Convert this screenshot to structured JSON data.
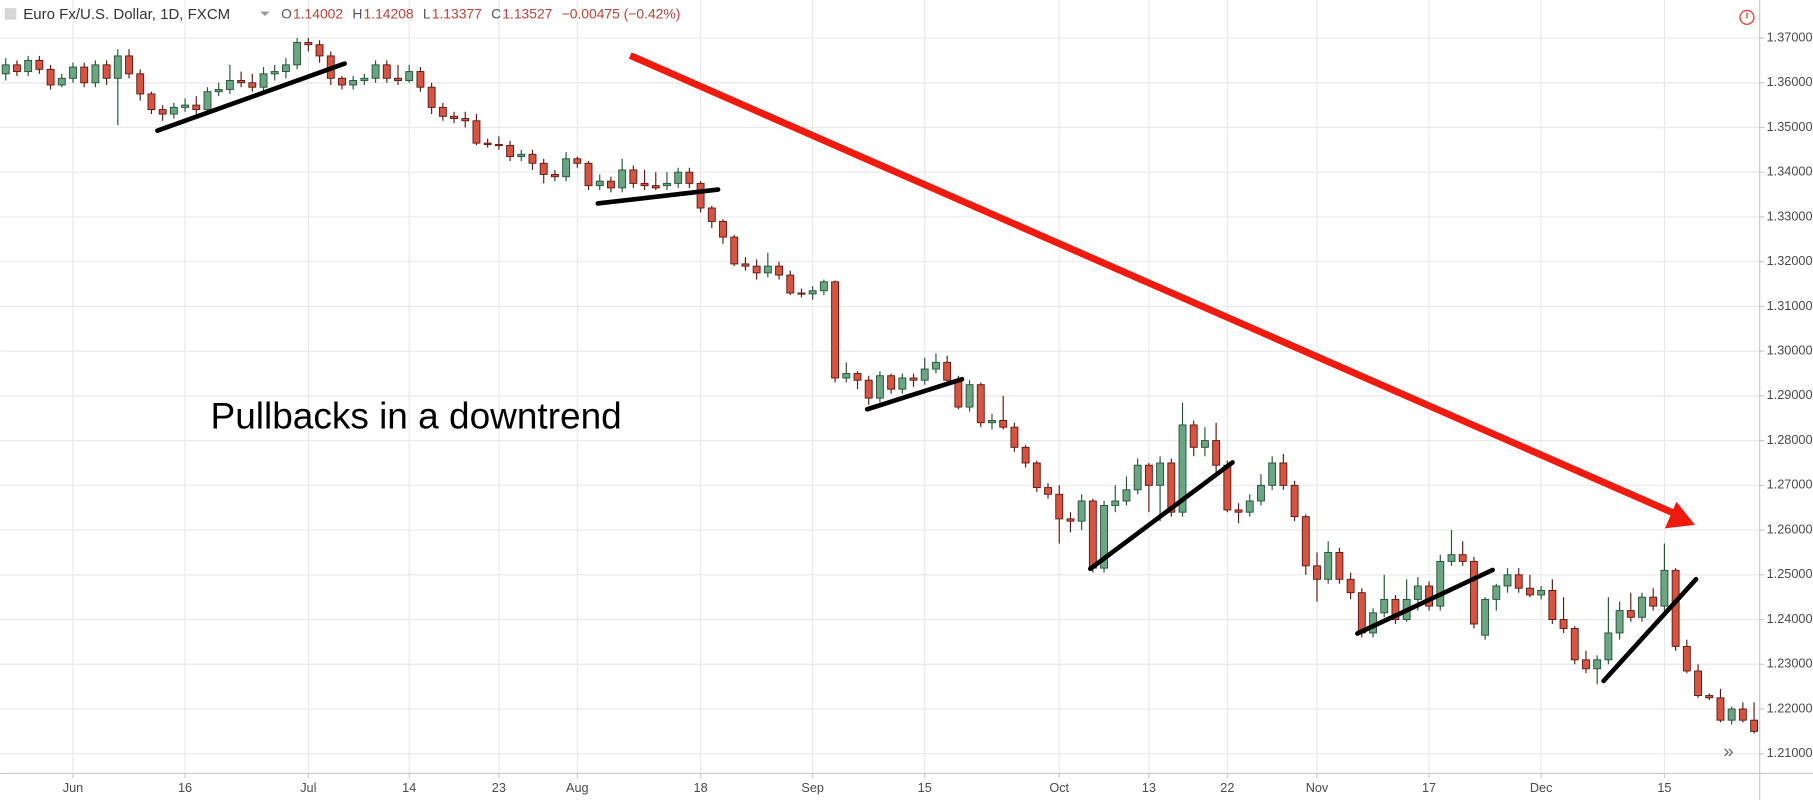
{
  "header": {
    "symbol": "Euro Fx/U.S. Dollar, 1D, FXCM",
    "ohlc": [
      {
        "label": "O",
        "value": "1.14002"
      },
      {
        "label": "H",
        "value": "1.14208"
      },
      {
        "label": "L",
        "value": "1.13377"
      },
      {
        "label": "C",
        "value": "1.13527"
      }
    ],
    "change": "−0.00475 (−0.42%)"
  },
  "chart_data": {
    "type": "candlestick",
    "annotation": "Pullbacks in a downtrend",
    "up_color": "#6ba583",
    "down_color": "#d75442",
    "grid": true,
    "xlim": [
      -0.5,
      156.5
    ],
    "xticks": [
      {
        "value": 6,
        "label": "Jun"
      },
      16,
      {
        "value": 27,
        "label": "Jul"
      },
      14,
      23,
      {
        "value": 51,
        "label": "Aug"
      },
      18,
      {
        "value": 72,
        "label": "Sep"
      },
      15,
      {
        "value": 94,
        "label": "Oct"
      },
      13,
      22,
      {
        "value": 117,
        "label": "Nov"
      },
      17,
      {
        "value": 137,
        "label": "Dec"
      },
      15
    ],
    "xtick_positions": [
      6,
      16,
      27,
      36,
      44,
      51,
      62,
      72,
      82,
      94,
      102,
      109,
      117,
      127,
      137,
      148
    ],
    "ylim": [
      1.2056,
      1.3785
    ],
    "yticks": [
      {
        "value": 1.21,
        "label": "1.21000"
      },
      {
        "value": 1.22,
        "label": "1.22000"
      },
      {
        "value": 1.23,
        "label": "1.23000"
      },
      {
        "value": 1.24,
        "label": "1.24000"
      },
      {
        "value": 1.25,
        "label": "1.25000"
      },
      {
        "value": 1.26,
        "label": "1.26000"
      },
      {
        "value": 1.27,
        "label": "1.27000"
      },
      {
        "value": 1.28,
        "label": "1.28000"
      },
      {
        "value": 1.29,
        "label": "1.29000"
      },
      {
        "value": 1.3,
        "label": "1.30000"
      },
      {
        "value": 1.31,
        "label": "1.31000"
      },
      {
        "value": 1.32,
        "label": "1.32000"
      },
      {
        "value": 1.33,
        "label": "1.33000"
      },
      {
        "value": 1.34,
        "label": "1.34000"
      },
      {
        "value": 1.35,
        "label": "1.35000"
      },
      {
        "value": 1.36,
        "label": "1.36000"
      },
      {
        "value": 1.37,
        "label": "1.37000"
      }
    ],
    "candles": [
      [
        1.362,
        1.3655,
        1.3605,
        1.364
      ],
      [
        1.364,
        1.365,
        1.3615,
        1.3625
      ],
      [
        1.3625,
        1.366,
        1.3615,
        1.365
      ],
      [
        1.365,
        1.366,
        1.362,
        1.363
      ],
      [
        1.363,
        1.364,
        1.3585,
        1.3595
      ],
      [
        1.3595,
        1.362,
        1.359,
        1.361
      ],
      [
        1.361,
        1.3645,
        1.36,
        1.3635
      ],
      [
        1.3635,
        1.3645,
        1.359,
        1.36
      ],
      [
        1.36,
        1.365,
        1.359,
        1.364
      ],
      [
        1.364,
        1.365,
        1.3595,
        1.361
      ],
      [
        1.361,
        1.3675,
        1.3505,
        1.366
      ],
      [
        1.366,
        1.3675,
        1.361,
        1.362
      ],
      [
        1.362,
        1.363,
        1.356,
        1.3575
      ],
      [
        1.3575,
        1.358,
        1.353,
        1.354
      ],
      [
        1.354,
        1.355,
        1.3515,
        1.353
      ],
      [
        1.353,
        1.3555,
        1.352,
        1.3545
      ],
      [
        1.3545,
        1.3565,
        1.3535,
        1.355
      ],
      [
        1.355,
        1.357,
        1.353,
        1.354
      ],
      [
        1.354,
        1.359,
        1.353,
        1.358
      ],
      [
        1.358,
        1.36,
        1.357,
        1.3585
      ],
      [
        1.3585,
        1.364,
        1.3575,
        1.3605
      ],
      [
        1.3605,
        1.3625,
        1.359,
        1.36
      ],
      [
        1.36,
        1.362,
        1.358,
        1.359
      ],
      [
        1.359,
        1.3635,
        1.358,
        1.362
      ],
      [
        1.362,
        1.364,
        1.3605,
        1.3625
      ],
      [
        1.3625,
        1.3655,
        1.361,
        1.364
      ],
      [
        1.364,
        1.37,
        1.363,
        1.369
      ],
      [
        1.369,
        1.37,
        1.367,
        1.3685
      ],
      [
        1.3685,
        1.3695,
        1.3645,
        1.366
      ],
      [
        1.366,
        1.367,
        1.3595,
        1.361
      ],
      [
        1.361,
        1.3615,
        1.3585,
        1.3595
      ],
      [
        1.3595,
        1.3615,
        1.3585,
        1.3605
      ],
      [
        1.3605,
        1.362,
        1.3595,
        1.361
      ],
      [
        1.361,
        1.365,
        1.36,
        1.364
      ],
      [
        1.364,
        1.365,
        1.36,
        1.361
      ],
      [
        1.361,
        1.364,
        1.3595,
        1.3605
      ],
      [
        1.3605,
        1.364,
        1.36,
        1.3625
      ],
      [
        1.3625,
        1.3635,
        1.358,
        1.359
      ],
      [
        1.359,
        1.36,
        1.353,
        1.3545
      ],
      [
        1.3545,
        1.3555,
        1.3515,
        1.3525
      ],
      [
        1.3525,
        1.3535,
        1.351,
        1.352
      ],
      [
        1.352,
        1.3535,
        1.35,
        1.3515
      ],
      [
        1.3515,
        1.353,
        1.346,
        1.3465
      ],
      [
        1.3465,
        1.3475,
        1.3455,
        1.3462
      ],
      [
        1.3462,
        1.348,
        1.345,
        1.346
      ],
      [
        1.346,
        1.347,
        1.3425,
        1.3435
      ],
      [
        1.3435,
        1.345,
        1.3425,
        1.344
      ],
      [
        1.344,
        1.345,
        1.3405,
        1.342
      ],
      [
        1.342,
        1.343,
        1.3375,
        1.3395
      ],
      [
        1.3395,
        1.3405,
        1.338,
        1.339
      ],
      [
        1.339,
        1.3445,
        1.338,
        1.343
      ],
      [
        1.343,
        1.3435,
        1.341,
        1.342
      ],
      [
        1.342,
        1.3425,
        1.336,
        1.337
      ],
      [
        1.337,
        1.3395,
        1.336,
        1.338
      ],
      [
        1.338,
        1.339,
        1.3355,
        1.3365
      ],
      [
        1.3365,
        1.343,
        1.3355,
        1.3405
      ],
      [
        1.3405,
        1.3415,
        1.3365,
        1.3375
      ],
      [
        1.3375,
        1.3405,
        1.336,
        1.337
      ],
      [
        1.337,
        1.34,
        1.336,
        1.3365
      ],
      [
        1.337,
        1.34,
        1.336,
        1.3375
      ],
      [
        1.3375,
        1.341,
        1.3365,
        1.34
      ],
      [
        1.34,
        1.341,
        1.3365,
        1.3375
      ],
      [
        1.3375,
        1.338,
        1.331,
        1.332
      ],
      [
        1.332,
        1.3325,
        1.3275,
        1.329
      ],
      [
        1.329,
        1.3295,
        1.324,
        1.3255
      ],
      [
        1.3255,
        1.326,
        1.319,
        1.3195
      ],
      [
        1.3195,
        1.321,
        1.318,
        1.319
      ],
      [
        1.319,
        1.3205,
        1.316,
        1.3175
      ],
      [
        1.3175,
        1.322,
        1.3165,
        1.319
      ],
      [
        1.319,
        1.32,
        1.316,
        1.317
      ],
      [
        1.317,
        1.318,
        1.3125,
        1.313
      ],
      [
        1.313,
        1.314,
        1.312,
        1.3128
      ],
      [
        1.3128,
        1.3145,
        1.3115,
        1.3135
      ],
      [
        1.3135,
        1.316,
        1.3125,
        1.3155
      ],
      [
        1.3155,
        1.3158,
        1.293,
        1.294
      ],
      [
        1.294,
        1.2975,
        1.293,
        1.295
      ],
      [
        1.295,
        1.2955,
        1.2915,
        1.2935
      ],
      [
        1.2935,
        1.2945,
        1.288,
        1.2895
      ],
      [
        1.2895,
        1.2955,
        1.2885,
        1.2945
      ],
      [
        1.2945,
        1.295,
        1.2905,
        1.2915
      ],
      [
        1.2915,
        1.295,
        1.2905,
        1.294
      ],
      [
        1.294,
        1.295,
        1.292,
        1.2935
      ],
      [
        1.2935,
        1.2985,
        1.2925,
        1.296
      ],
      [
        1.296,
        1.2995,
        1.295,
        1.2975
      ],
      [
        1.2975,
        1.299,
        1.2925,
        1.2935
      ],
      [
        1.2935,
        1.2945,
        1.287,
        1.2875
      ],
      [
        1.2875,
        1.2935,
        1.2865,
        1.2925
      ],
      [
        1.2925,
        1.293,
        1.283,
        1.284
      ],
      [
        1.284,
        1.286,
        1.2825,
        1.2845
      ],
      [
        1.2845,
        1.29,
        1.2825,
        1.283
      ],
      [
        1.283,
        1.284,
        1.2775,
        1.2785
      ],
      [
        1.2785,
        1.279,
        1.274,
        1.275
      ],
      [
        1.275,
        1.2755,
        1.2685,
        1.2695
      ],
      [
        1.2695,
        1.2705,
        1.267,
        1.268
      ],
      [
        1.268,
        1.27,
        1.257,
        1.2625
      ],
      [
        1.2625,
        1.264,
        1.2595,
        1.262
      ],
      [
        1.262,
        1.268,
        1.26,
        1.2665
      ],
      [
        1.2665,
        1.267,
        1.2505,
        1.2515
      ],
      [
        1.2515,
        1.2665,
        1.2505,
        1.2655
      ],
      [
        1.2655,
        1.27,
        1.264,
        1.2665
      ],
      [
        1.2665,
        1.272,
        1.2655,
        1.269
      ],
      [
        1.269,
        1.276,
        1.268,
        1.2745
      ],
      [
        1.2745,
        1.275,
        1.264,
        1.27
      ],
      [
        1.27,
        1.2765,
        1.262,
        1.275
      ],
      [
        1.275,
        1.276,
        1.263,
        1.264
      ],
      [
        1.264,
        1.2885,
        1.263,
        1.2835
      ],
      [
        1.2835,
        1.2845,
        1.2765,
        1.2785
      ],
      [
        1.2785,
        1.283,
        1.2765,
        1.28
      ],
      [
        1.28,
        1.284,
        1.272,
        1.2745
      ],
      [
        1.2745,
        1.2755,
        1.264,
        1.2645
      ],
      [
        1.2645,
        1.266,
        1.2615,
        1.264
      ],
      [
        1.264,
        1.268,
        1.263,
        1.2665
      ],
      [
        1.2665,
        1.2725,
        1.2655,
        1.27
      ],
      [
        1.27,
        1.2765,
        1.269,
        1.275
      ],
      [
        1.275,
        1.277,
        1.269,
        1.27
      ],
      [
        1.27,
        1.271,
        1.262,
        1.263
      ],
      [
        1.263,
        1.2635,
        1.25,
        1.252
      ],
      [
        1.252,
        1.255,
        1.244,
        1.249
      ],
      [
        1.249,
        1.2575,
        1.248,
        1.255
      ],
      [
        1.255,
        1.256,
        1.248,
        1.249
      ],
      [
        1.249,
        1.2505,
        1.2445,
        1.246
      ],
      [
        1.246,
        1.247,
        1.236,
        1.237
      ],
      [
        1.237,
        1.2425,
        1.236,
        1.2415
      ],
      [
        1.2415,
        1.25,
        1.2405,
        1.2445
      ],
      [
        1.2445,
        1.2455,
        1.239,
        1.24
      ],
      [
        1.24,
        1.249,
        1.2395,
        1.2445
      ],
      [
        1.2445,
        1.2495,
        1.242,
        1.2475
      ],
      [
        1.2475,
        1.2485,
        1.242,
        1.243
      ],
      [
        1.243,
        1.2545,
        1.242,
        1.253
      ],
      [
        1.253,
        1.26,
        1.252,
        1.2545
      ],
      [
        1.2545,
        1.2575,
        1.252,
        1.253
      ],
      [
        1.253,
        1.254,
        1.238,
        1.239
      ],
      [
        1.2365,
        1.245,
        1.2355,
        1.2445
      ],
      [
        1.2445,
        1.248,
        1.242,
        1.2475
      ],
      [
        1.2475,
        1.2515,
        1.246,
        1.25
      ],
      [
        1.25,
        1.2515,
        1.246,
        1.247
      ],
      [
        1.247,
        1.25,
        1.245,
        1.2455
      ],
      [
        1.2455,
        1.2475,
        1.2445,
        1.2465
      ],
      [
        1.2465,
        1.249,
        1.239,
        1.24
      ],
      [
        1.24,
        1.245,
        1.237,
        1.238
      ],
      [
        1.238,
        1.2385,
        1.23,
        1.231
      ],
      [
        1.231,
        1.233,
        1.228,
        1.229
      ],
      [
        1.229,
        1.232,
        1.2255,
        1.231
      ],
      [
        1.231,
        1.245,
        1.23,
        1.237
      ],
      [
        1.237,
        1.244,
        1.2355,
        1.242
      ],
      [
        1.242,
        1.246,
        1.2395,
        1.2405
      ],
      [
        1.2405,
        1.246,
        1.2395,
        1.245
      ],
      [
        1.245,
        1.247,
        1.242,
        1.243
      ],
      [
        1.243,
        1.257,
        1.242,
        1.251
      ],
      [
        1.251,
        1.2515,
        1.233,
        1.234
      ],
      [
        1.234,
        1.2355,
        1.228,
        1.2285
      ],
      [
        1.2285,
        1.23,
        1.2225,
        1.223
      ],
      [
        1.223,
        1.2235,
        1.222,
        1.2225
      ],
      [
        1.2225,
        1.2245,
        1.217,
        1.2175
      ],
      [
        1.2175,
        1.2205,
        1.2165,
        1.22
      ],
      [
        1.22,
        1.2215,
        1.217,
        1.2175
      ],
      [
        1.2175,
        1.2215,
        1.2145,
        1.215
      ]
    ]
  }
}
